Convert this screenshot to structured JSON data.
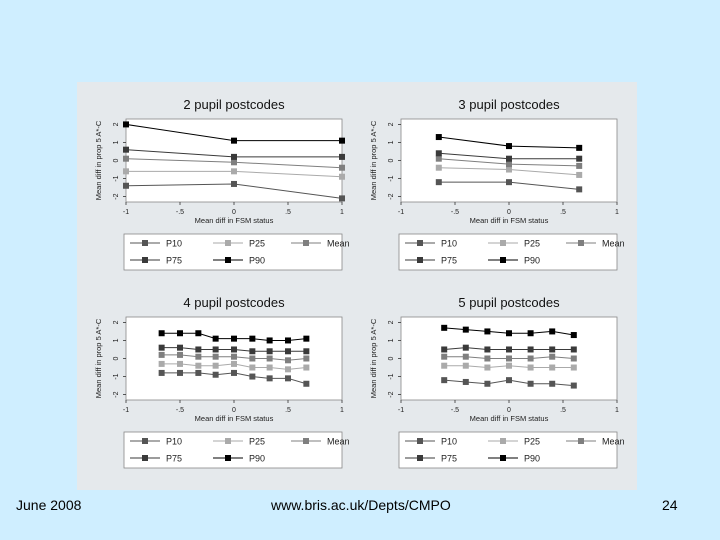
{
  "footer": {
    "date": "June 2008",
    "url": "www.bris.ac.uk/Depts/CMPO",
    "page": "24"
  },
  "colors": {
    "slide_bg": "#cfeeff",
    "figure_bg": "#e5e9ec",
    "plot_bg": "#ffffff",
    "P10": "#555555",
    "P25": "#aaaaaa",
    "Mean": "#7f7f7f",
    "P75": "#3a3a3a",
    "P90": "#000000"
  },
  "chart_data": [
    {
      "type": "line",
      "title": "2 pupil postcodes",
      "xlabel": "Mean diff in FSM status",
      "ylabel": "Mean diff in prop 5 A*-C",
      "xlim": [
        -1,
        1
      ],
      "xticks": [
        "-1",
        "-.5",
        "0",
        ".5",
        "1"
      ],
      "ylim": [
        -2.3,
        2.3
      ],
      "yticks": [
        "-2",
        "-1",
        "0",
        "1",
        "2"
      ],
      "x": [
        -1,
        0,
        1
      ],
      "series": [
        {
          "name": "P10",
          "values": [
            -1.4,
            -1.3,
            -2.1
          ]
        },
        {
          "name": "P25",
          "values": [
            -0.6,
            -0.6,
            -0.9
          ]
        },
        {
          "name": "Mean",
          "values": [
            0.1,
            -0.1,
            -0.4
          ]
        },
        {
          "name": "P75",
          "values": [
            0.6,
            0.2,
            0.2
          ]
        },
        {
          "name": "P90",
          "values": [
            2.0,
            1.1,
            1.1
          ]
        }
      ],
      "legend": [
        {
          "key": "P10",
          "label": "P10"
        },
        {
          "key": "P25",
          "label": "P25"
        },
        {
          "key": "Mean",
          "label": "Mean"
        },
        {
          "key": "P75",
          "label": "P75"
        },
        {
          "key": "P90",
          "label": "P90"
        }
      ]
    },
    {
      "type": "line",
      "title": "3 pupil postcodes",
      "xlabel": "Mean diff in FSM status",
      "ylabel": "Mean diff in prop 5 A*-C",
      "xlim": [
        -1,
        1
      ],
      "xticks": [
        "-1",
        "-.5",
        "0",
        ".5",
        "1"
      ],
      "ylim": [
        -2.3,
        2.3
      ],
      "yticks": [
        "-2",
        "-1",
        "0",
        "1",
        "2"
      ],
      "x": [
        -0.65,
        0,
        0.65
      ],
      "series": [
        {
          "name": "P10",
          "values": [
            -1.2,
            -1.2,
            -1.6
          ]
        },
        {
          "name": "P25",
          "values": [
            -0.4,
            -0.5,
            -0.8
          ]
        },
        {
          "name": "Mean",
          "values": [
            0.1,
            -0.2,
            -0.3
          ]
        },
        {
          "name": "P75",
          "values": [
            0.4,
            0.1,
            0.1
          ]
        },
        {
          "name": "P90",
          "values": [
            1.3,
            0.8,
            0.7
          ]
        }
      ],
      "legend": [
        {
          "key": "P10",
          "label": "P10"
        },
        {
          "key": "P25",
          "label": "P25"
        },
        {
          "key": "Mean",
          "label": "Mean"
        },
        {
          "key": "P75",
          "label": "P75"
        },
        {
          "key": "P90",
          "label": "P90"
        }
      ]
    },
    {
      "type": "line",
      "title": "4 pupil postcodes",
      "xlabel": "Mean diff in FSM status",
      "ylabel": "Mean diff in prop 5 A*-C",
      "xlim": [
        -1,
        1
      ],
      "xticks": [
        "-1",
        "-.5",
        "0",
        ".5",
        "1"
      ],
      "ylim": [
        -2.3,
        2.3
      ],
      "yticks": [
        "-2",
        "-1",
        "0",
        "1",
        "2"
      ],
      "x": [
        -0.67,
        -0.5,
        -0.33,
        -0.17,
        0,
        0.17,
        0.33,
        0.5,
        0.67
      ],
      "series": [
        {
          "name": "P10",
          "values": [
            -0.8,
            -0.8,
            -0.8,
            -0.9,
            -0.8,
            -1.0,
            -1.1,
            -1.1,
            -1.4
          ]
        },
        {
          "name": "P25",
          "values": [
            -0.3,
            -0.3,
            -0.4,
            -0.4,
            -0.3,
            -0.5,
            -0.5,
            -0.6,
            -0.5
          ]
        },
        {
          "name": "Mean",
          "values": [
            0.2,
            0.2,
            0.1,
            0.1,
            0.1,
            0.0,
            0.0,
            -0.1,
            0.0
          ]
        },
        {
          "name": "P75",
          "values": [
            0.6,
            0.6,
            0.5,
            0.5,
            0.5,
            0.4,
            0.4,
            0.4,
            0.4
          ]
        },
        {
          "name": "P90",
          "values": [
            1.4,
            1.4,
            1.4,
            1.1,
            1.1,
            1.1,
            1.0,
            1.0,
            1.1
          ]
        }
      ],
      "legend": [
        {
          "key": "P10",
          "label": "P10"
        },
        {
          "key": "P25",
          "label": "P25"
        },
        {
          "key": "Mean",
          "label": "Mean"
        },
        {
          "key": "P75",
          "label": "P75"
        },
        {
          "key": "P90",
          "label": "P90"
        }
      ]
    },
    {
      "type": "line",
      "title": "5 pupil postcodes",
      "xlabel": "Mean diff in FSM status",
      "ylabel": "Mean diff in prop 5 A*-C",
      "xlim": [
        -1,
        1
      ],
      "xticks": [
        "-1",
        "-.5",
        "0",
        ".5",
        "1"
      ],
      "ylim": [
        -2.3,
        2.3
      ],
      "yticks": [
        "-2",
        "-1",
        "0",
        "1",
        "2"
      ],
      "x": [
        -0.6,
        -0.4,
        -0.2,
        0,
        0.2,
        0.4,
        0.6
      ],
      "series": [
        {
          "name": "P10",
          "values": [
            -1.2,
            -1.3,
            -1.4,
            -1.2,
            -1.4,
            -1.4,
            -1.5
          ]
        },
        {
          "name": "P25",
          "values": [
            -0.4,
            -0.4,
            -0.5,
            -0.4,
            -0.5,
            -0.5,
            -0.5
          ]
        },
        {
          "name": "Mean",
          "values": [
            0.1,
            0.1,
            0.0,
            0.0,
            0.0,
            0.1,
            0.0
          ]
        },
        {
          "name": "P75",
          "values": [
            0.5,
            0.6,
            0.5,
            0.5,
            0.5,
            0.5,
            0.5
          ]
        },
        {
          "name": "P90",
          "values": [
            1.7,
            1.6,
            1.5,
            1.4,
            1.4,
            1.5,
            1.3
          ]
        }
      ],
      "legend": [
        {
          "key": "P10",
          "label": "P10"
        },
        {
          "key": "P25",
          "label": "P25"
        },
        {
          "key": "Mean",
          "label": "Mean"
        },
        {
          "key": "P75",
          "label": "P75"
        },
        {
          "key": "P90",
          "label": "P90"
        }
      ]
    }
  ]
}
